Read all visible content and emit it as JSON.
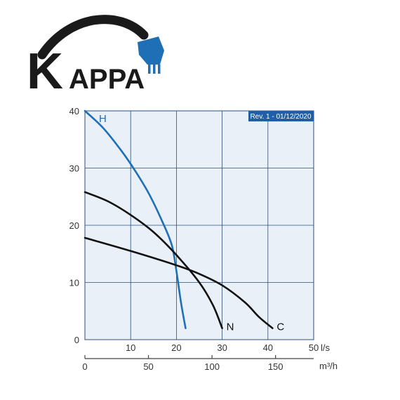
{
  "logo": {
    "text_k": "K",
    "text_rest": "APPA",
    "colors": {
      "dark": "#1a1a1a",
      "blue": "#1f6fb7"
    }
  },
  "revision_badge": "Rev. 1 - 01/12/2020",
  "chart_data": {
    "type": "line",
    "x_primary": {
      "unit": "l/s",
      "ticks": [
        0,
        10,
        20,
        30,
        40,
        50
      ],
      "range": [
        0,
        50
      ]
    },
    "x_secondary": {
      "unit": "m³/h",
      "ticks": [
        0,
        50,
        100,
        150
      ],
      "range": [
        0,
        180
      ]
    },
    "y": {
      "ticks": [
        0,
        10,
        20,
        30,
        40
      ],
      "range": [
        0,
        40
      ]
    },
    "grid": true,
    "background": "#e9f0f8",
    "series": [
      {
        "name": "H",
        "color": "#1f6fb7",
        "points": [
          [
            0,
            40
          ],
          [
            4,
            37
          ],
          [
            8,
            33
          ],
          [
            11,
            29.5
          ],
          [
            14,
            25.5
          ],
          [
            17,
            20.5
          ],
          [
            19,
            16.5
          ],
          [
            20,
            12
          ],
          [
            21,
            6.5
          ],
          [
            22,
            2
          ]
        ]
      },
      {
        "name": "N",
        "color": "#111111",
        "points": [
          [
            0,
            25.8
          ],
          [
            5,
            24.2
          ],
          [
            10,
            21.8
          ],
          [
            15,
            18.8
          ],
          [
            20,
            14.8
          ],
          [
            25,
            10
          ],
          [
            28,
            6
          ],
          [
            30,
            2
          ]
        ]
      },
      {
        "name": "C",
        "color": "#111111",
        "points": [
          [
            0,
            17.8
          ],
          [
            10,
            15.5
          ],
          [
            20,
            13
          ],
          [
            25,
            11.5
          ],
          [
            30,
            9.5
          ],
          [
            35,
            6.5
          ],
          [
            38,
            4
          ],
          [
            41,
            2
          ]
        ]
      }
    ]
  }
}
